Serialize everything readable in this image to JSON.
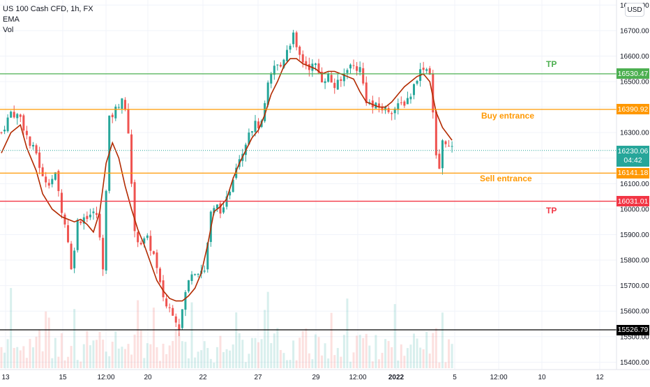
{
  "legend": {
    "symbol": "US 100 Cash CFD, 1h, FX",
    "ema_label": "EMA",
    "vol_label": "Vol"
  },
  "currency_button": "USD",
  "colors": {
    "up": "#26a69a",
    "down": "#ef5350",
    "ema": "#b22a00",
    "tp_green": "#4caf50",
    "entry_orange": "#ff9800",
    "tp_red": "#f23645",
    "support_black": "#000000"
  },
  "price_labels": [
    {
      "value": "16530.47",
      "price": 16530.47,
      "color": "#4caf50"
    },
    {
      "value": "16390.92",
      "price": 16390.92,
      "color": "#ff9800"
    },
    {
      "value": "16141.18",
      "price": 16141.18,
      "color": "#ff9800"
    },
    {
      "value": "16031.01",
      "price": 16031.01,
      "color": "#f23645"
    },
    {
      "value": "15526.79",
      "price": 15526.79,
      "color": "#000000"
    }
  ],
  "current_price": {
    "value": "16230.06",
    "countdown": "04:42",
    "price": 16230.06
  },
  "annotations": [
    {
      "id": "tp-top",
      "text": "TP",
      "color": "#4caf50"
    },
    {
      "id": "buy",
      "text": "Buy entrance",
      "color": "#ff9800"
    },
    {
      "id": "sell",
      "text": "Sell entrance",
      "color": "#ff9800"
    },
    {
      "id": "tp-bottom",
      "text": "TP",
      "color": "#f23645"
    }
  ],
  "chart_data": {
    "type": "candlestick",
    "title": "US 100 Cash CFD, 1h, FX",
    "y_ticks": [
      15400,
      15500,
      15600,
      15700,
      15800,
      15900,
      16000,
      16100,
      16200,
      16300,
      16400,
      16500,
      16600,
      16700,
      16800
    ],
    "ylim": [
      15380,
      16830
    ],
    "x_ticks": [
      "13",
      "15",
      "12:00",
      "20",
      "22",
      "27",
      "29",
      "12:00",
      "2022",
      "5",
      "12:00",
      "10",
      "12"
    ],
    "grid": true,
    "price_path": [
      [
        0,
        16300
      ],
      [
        3,
        16380
      ],
      [
        6,
        16360
      ],
      [
        9,
        16250
      ],
      [
        11,
        16220
      ],
      [
        13,
        16120
      ],
      [
        15,
        16110
      ],
      [
        17,
        16130
      ],
      [
        19,
        16000
      ],
      [
        21,
        15880
      ],
      [
        22,
        15760
      ],
      [
        24,
        15950
      ],
      [
        26,
        15970
      ],
      [
        28,
        15980
      ],
      [
        30,
        15980
      ],
      [
        32,
        15780
      ],
      [
        34,
        16350
      ],
      [
        36,
        16390
      ],
      [
        38,
        16440
      ],
      [
        40,
        16310
      ],
      [
        42,
        15900
      ],
      [
        44,
        15870
      ],
      [
        46,
        15880
      ],
      [
        48,
        15820
      ],
      [
        50,
        15700
      ],
      [
        52,
        15620
      ],
      [
        54,
        15600
      ],
      [
        56,
        15540
      ],
      [
        58,
        15670
      ],
      [
        60,
        15760
      ],
      [
        62,
        15760
      ],
      [
        64,
        15760
      ],
      [
        66,
        15980
      ],
      [
        68,
        16010
      ],
      [
        70,
        15990
      ],
      [
        72,
        16080
      ],
      [
        74,
        16180
      ],
      [
        76,
        16230
      ],
      [
        78,
        16310
      ],
      [
        80,
        16330
      ],
      [
        82,
        16330
      ],
      [
        84,
        16480
      ],
      [
        86,
        16560
      ],
      [
        88,
        16560
      ],
      [
        90,
        16630
      ],
      [
        92,
        16680
      ],
      [
        93,
        16620
      ],
      [
        95,
        16580
      ],
      [
        97,
        16560
      ],
      [
        99,
        16560
      ],
      [
        101,
        16510
      ],
      [
        103,
        16520
      ],
      [
        105,
        16480
      ],
      [
        107,
        16500
      ],
      [
        109,
        16560
      ],
      [
        111,
        16560
      ],
      [
        113,
        16550
      ],
      [
        115,
        16430
      ],
      [
        117,
        16400
      ],
      [
        119,
        16400
      ],
      [
        121,
        16390
      ],
      [
        123,
        16390
      ],
      [
        125,
        16400
      ],
      [
        127,
        16420
      ],
      [
        129,
        16450
      ],
      [
        131,
        16520
      ],
      [
        133,
        16560
      ],
      [
        135,
        16540
      ],
      [
        136,
        16380
      ],
      [
        137,
        16200
      ],
      [
        138,
        16160
      ],
      [
        139,
        16260
      ],
      [
        140,
        16270
      ],
      [
        141,
        16240
      ],
      [
        142,
        16230
      ]
    ],
    "ema_path": [
      [
        0,
        16220
      ],
      [
        3,
        16300
      ],
      [
        6,
        16330
      ],
      [
        8,
        16240
      ],
      [
        11,
        16150
      ],
      [
        13,
        16060
      ],
      [
        16,
        16000
      ],
      [
        19,
        15970
      ],
      [
        21,
        15960
      ],
      [
        23,
        15950
      ],
      [
        25,
        15960
      ],
      [
        27,
        15940
      ],
      [
        29,
        15910
      ],
      [
        31,
        15990
      ],
      [
        33,
        16180
      ],
      [
        35,
        16260
      ],
      [
        37,
        16200
      ],
      [
        39,
        16090
      ],
      [
        41,
        16000
      ],
      [
        43,
        15920
      ],
      [
        45,
        15860
      ],
      [
        47,
        15790
      ],
      [
        49,
        15720
      ],
      [
        51,
        15680
      ],
      [
        53,
        15650
      ],
      [
        55,
        15640
      ],
      [
        57,
        15640
      ],
      [
        59,
        15660
      ],
      [
        61,
        15690
      ],
      [
        63,
        15750
      ],
      [
        65,
        15860
      ],
      [
        67,
        15990
      ],
      [
        69,
        16010
      ],
      [
        71,
        16040
      ],
      [
        73,
        16120
      ],
      [
        75,
        16180
      ],
      [
        77,
        16230
      ],
      [
        79,
        16280
      ],
      [
        81,
        16310
      ],
      [
        83,
        16370
      ],
      [
        85,
        16450
      ],
      [
        87,
        16500
      ],
      [
        89,
        16560
      ],
      [
        91,
        16590
      ],
      [
        93,
        16590
      ],
      [
        95,
        16570
      ],
      [
        97,
        16560
      ],
      [
        99,
        16550
      ],
      [
        101,
        16530
      ],
      [
        103,
        16540
      ],
      [
        105,
        16540
      ],
      [
        107,
        16530
      ],
      [
        109,
        16520
      ],
      [
        111,
        16510
      ],
      [
        113,
        16460
      ],
      [
        115,
        16420
      ],
      [
        117,
        16410
      ],
      [
        119,
        16400
      ],
      [
        121,
        16400
      ],
      [
        123,
        16420
      ],
      [
        125,
        16450
      ],
      [
        127,
        16480
      ],
      [
        129,
        16500
      ],
      [
        131,
        16520
      ],
      [
        133,
        16530
      ],
      [
        135,
        16500
      ],
      [
        137,
        16380
      ],
      [
        139,
        16320
      ],
      [
        142,
        16270
      ]
    ]
  }
}
